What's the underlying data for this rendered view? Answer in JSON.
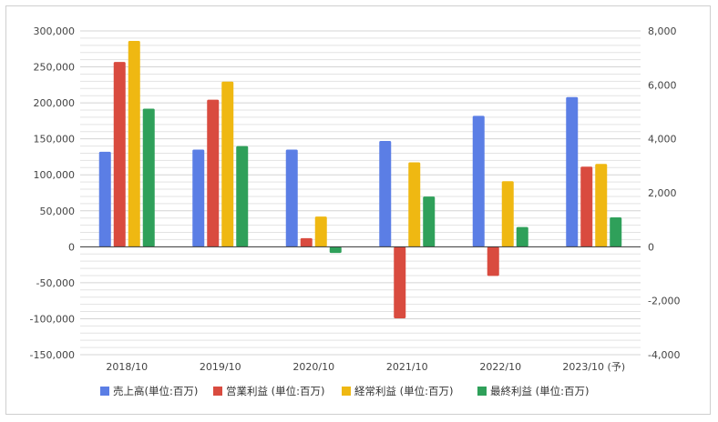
{
  "chart_data": {
    "type": "bar",
    "categories": [
      "2018/10",
      "2019/10",
      "2020/10",
      "2021/10",
      "2022/10",
      "2023/10 (予)"
    ],
    "series": [
      {
        "name": "売上高(単位:百万)",
        "axis": "left",
        "color": "#5b7ee5",
        "values": [
          132000,
          135000,
          135000,
          147000,
          182000,
          208000
        ]
      },
      {
        "name": "営業利益 (単位:百万)",
        "axis": "right",
        "color": "#d94b3f",
        "values": [
          6850,
          5450,
          320,
          -2650,
          -1080,
          2970
        ]
      },
      {
        "name": "経常利益 (単位:百万)",
        "axis": "right",
        "color": "#efb812",
        "values": [
          7630,
          6120,
          1120,
          3130,
          2430,
          3070
        ]
      },
      {
        "name": "最終利益 (単位:百万)",
        "axis": "right",
        "color": "#2fa05a",
        "values": [
          5120,
          3730,
          -230,
          1860,
          730,
          1090
        ]
      }
    ],
    "y_left": {
      "range": [
        -150000,
        300000
      ],
      "ticks": [
        300000,
        250000,
        200000,
        150000,
        100000,
        50000,
        0,
        -50000,
        -100000,
        -150000
      ],
      "tick_labels": [
        "300,000",
        "250,000",
        "200,000",
        "150,000",
        "100,000",
        "50,000",
        "0",
        "-50,000",
        "-100,000",
        "-150,000"
      ]
    },
    "y_right": {
      "range": [
        -4000,
        8000
      ],
      "ticks": [
        8000,
        6000,
        4000,
        2000,
        0,
        -2000,
        -4000
      ],
      "tick_labels": [
        "8,000",
        "6,000",
        "4,000",
        "2,000",
        "0",
        "-2,000",
        "-4,000"
      ]
    },
    "grid": true,
    "legend_position": "bottom",
    "colors": {
      "grid": "#e3e3e3",
      "zero_line": "#333333",
      "frame": "#cfcfcf"
    }
  }
}
